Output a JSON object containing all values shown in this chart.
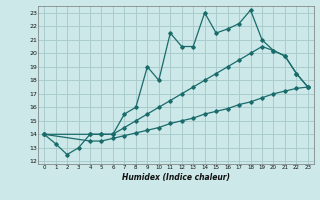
{
  "xlabel": "Humidex (Indice chaleur)",
  "bg_color": "#cce8e8",
  "grid_color": "#aacccc",
  "line_color": "#1a6b6b",
  "x_ticks": [
    0,
    1,
    2,
    3,
    4,
    5,
    6,
    7,
    8,
    9,
    10,
    11,
    12,
    13,
    14,
    15,
    16,
    17,
    18,
    19,
    20,
    21,
    22,
    23
  ],
  "y_ticks": [
    12,
    13,
    14,
    15,
    16,
    17,
    18,
    19,
    20,
    21,
    22,
    23
  ],
  "xlim": [
    -0.5,
    23.5
  ],
  "ylim": [
    11.8,
    23.5
  ],
  "line1_x": [
    0,
    1,
    2,
    3,
    4,
    5,
    6,
    7,
    8,
    9,
    10,
    11,
    12,
    13,
    14,
    15,
    16,
    17,
    18,
    19,
    20,
    21,
    22,
    23
  ],
  "line1_y": [
    14.0,
    13.3,
    12.5,
    13.0,
    14.0,
    14.0,
    14.0,
    15.5,
    16.0,
    19.0,
    18.0,
    21.5,
    20.5,
    20.5,
    23.0,
    21.5,
    21.8,
    22.2,
    23.2,
    21.0,
    20.2,
    19.8,
    18.5,
    17.5
  ],
  "line2_x": [
    0,
    4,
    5,
    6,
    7,
    8,
    9,
    10,
    11,
    12,
    13,
    14,
    15,
    16,
    17,
    18,
    19,
    20,
    21,
    22,
    23
  ],
  "line2_y": [
    14.0,
    14.0,
    14.0,
    14.0,
    14.5,
    15.0,
    15.5,
    16.0,
    16.5,
    17.0,
    17.5,
    18.0,
    18.5,
    19.0,
    19.5,
    20.0,
    20.5,
    20.2,
    19.8,
    18.5,
    17.5
  ],
  "line3_x": [
    0,
    4,
    5,
    6,
    7,
    8,
    9,
    10,
    11,
    12,
    13,
    14,
    15,
    16,
    17,
    18,
    19,
    20,
    21,
    22,
    23
  ],
  "line3_y": [
    14.0,
    13.5,
    13.5,
    13.7,
    13.9,
    14.1,
    14.3,
    14.5,
    14.8,
    15.0,
    15.2,
    15.5,
    15.7,
    15.9,
    16.2,
    16.4,
    16.7,
    17.0,
    17.2,
    17.4,
    17.5
  ]
}
